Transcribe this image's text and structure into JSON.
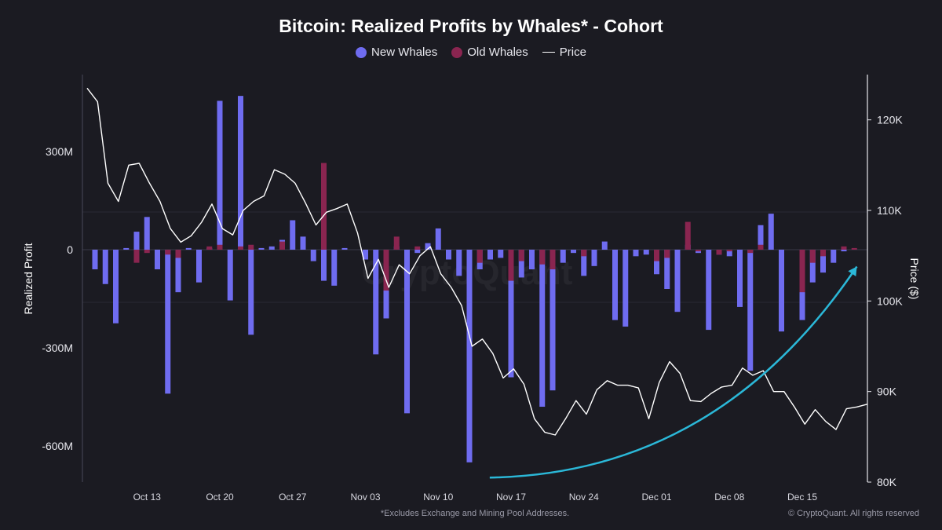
{
  "chart_data": {
    "type": "bar",
    "title": "Bitcoin: Realized Profits by Whales* - Cohort",
    "legend": [
      {
        "name": "New Whales",
        "color": "#6f6cf0",
        "marker": "dot"
      },
      {
        "name": "Old Whales",
        "color": "#8a2550",
        "marker": "dot"
      },
      {
        "name": "Price",
        "color": "#ffffff",
        "marker": "line"
      }
    ],
    "legend_position": "top-center",
    "ylabel": "Realized Profit",
    "y2label": "Price ($)",
    "ylim": [
      -700,
      500
    ],
    "yticks": [
      {
        "value": 300,
        "label": "300M"
      },
      {
        "value": 0,
        "label": "0"
      },
      {
        "value": -300,
        "label": "-300M"
      },
      {
        "value": -600,
        "label": "-600M"
      }
    ],
    "y2lim": [
      80000,
      125000
    ],
    "y2ticks": [
      {
        "value": 120000,
        "label": "120K"
      },
      {
        "value": 110000,
        "label": "110K"
      },
      {
        "value": 100000,
        "label": "100K"
      },
      {
        "value": 90000,
        "label": "90K"
      },
      {
        "value": 80000,
        "label": "80K"
      }
    ],
    "xticks": [
      "Oct 13",
      "Oct 20",
      "Oct 27",
      "Nov 03",
      "Nov 10",
      "Nov 17",
      "Nov 24",
      "Dec 01",
      "Dec 08",
      "Dec 15"
    ],
    "x_start": "Oct 08",
    "grid": true,
    "series": [
      {
        "name": "New Whales",
        "values": [
          -60,
          -105,
          -225,
          5,
          55,
          100,
          -60,
          -440,
          -130,
          5,
          -100,
          5,
          455,
          -155,
          470,
          -260,
          5,
          10,
          30,
          90,
          40,
          -35,
          -95,
          -110,
          5,
          0,
          -30,
          -320,
          -210,
          10,
          -500,
          -10,
          20,
          65,
          -30,
          -80,
          -650,
          -60,
          -30,
          -25,
          -390,
          -85,
          -60,
          -480,
          -430,
          -40,
          -10,
          -80,
          -50,
          25,
          -215,
          -235,
          -20,
          -15,
          -75,
          -120,
          -190,
          15,
          -10,
          -245,
          -15,
          -20,
          -175,
          -370,
          75,
          110,
          -250,
          0,
          -215,
          -100,
          -70,
          -40,
          -5,
          0
        ],
        "color": "#6f6cf0"
      },
      {
        "name": "Old Whales",
        "values": [
          0,
          0,
          0,
          0,
          -40,
          -10,
          0,
          -15,
          -25,
          0,
          0,
          10,
          15,
          0,
          10,
          15,
          0,
          0,
          25,
          0,
          0,
          0,
          265,
          0,
          0,
          0,
          0,
          0,
          -125,
          40,
          0,
          10,
          0,
          0,
          0,
          0,
          0,
          -40,
          0,
          0,
          -95,
          -35,
          0,
          -45,
          -60,
          0,
          0,
          -20,
          0,
          0,
          0,
          0,
          0,
          0,
          -35,
          -25,
          0,
          85,
          -5,
          0,
          -15,
          -5,
          0,
          -10,
          15,
          0,
          0,
          0,
          -130,
          -40,
          -20,
          0,
          10,
          5
        ],
        "color": "#8a2550"
      },
      {
        "name": "Price",
        "axis": "right",
        "values": [
          123500,
          122000,
          113000,
          111000,
          115000,
          115200,
          113000,
          111000,
          108000,
          106500,
          107200,
          108700,
          110700,
          108000,
          107300,
          110000,
          111000,
          111600,
          114500,
          114000,
          113000,
          110800,
          108400,
          109800,
          110200,
          110700,
          107500,
          102500,
          104600,
          101500,
          104000,
          103000,
          105000,
          106000,
          103000,
          101500,
          99500,
          95000,
          95800,
          94200,
          91500,
          92500,
          90800,
          87000,
          85500,
          85200,
          87000,
          89000,
          87500,
          90200,
          91200,
          90700,
          90700,
          90400,
          87000,
          91000,
          93300,
          92000,
          89000,
          88900,
          89800,
          90500,
          90700,
          92600,
          91800,
          92300,
          90000,
          90000,
          88300,
          86400,
          88000,
          86700,
          85800,
          88100,
          88300,
          88600
        ],
        "color": "#ffffff"
      }
    ],
    "footnote": "*Excludes Exchange and Mining Pool Addresses.",
    "copyright": "© CryptoQuant. All rights reserved",
    "annotation": {
      "type": "curved-arrow",
      "color": "#2bb8d8",
      "from": {
        "x_index": 37.5,
        "price": 80500
      },
      "to": {
        "x_index": 74,
        "price": 103800
      }
    }
  }
}
